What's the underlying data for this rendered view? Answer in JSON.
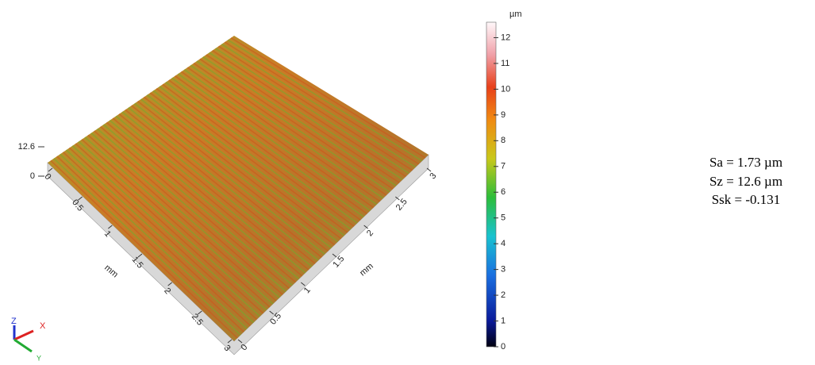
{
  "chart_data": {
    "type": "surface",
    "z_ticks": [
      12.6,
      0
    ],
    "x_label": "mm",
    "x_ticks": [
      0,
      0.5,
      1,
      1.5,
      2,
      2.5,
      3
    ],
    "xlim": [
      0,
      3
    ],
    "y_label": "mm",
    "y_ticks": [
      0,
      0.5,
      1,
      1.5,
      2,
      2.5,
      3
    ],
    "ylim": [
      0,
      3
    ],
    "axes_triad": [
      "Z",
      "X",
      "Y"
    ],
    "colorbar": {
      "unit": "µm",
      "lim": [
        0,
        12.6
      ],
      "ticks": [
        0,
        1,
        2,
        3,
        4,
        5,
        6,
        7,
        8,
        9,
        10,
        11,
        12
      ]
    },
    "stats": [
      "Sa = 1.73 µm",
      "Sz = 12.6 µm",
      "Ssk = -0.131"
    ]
  }
}
